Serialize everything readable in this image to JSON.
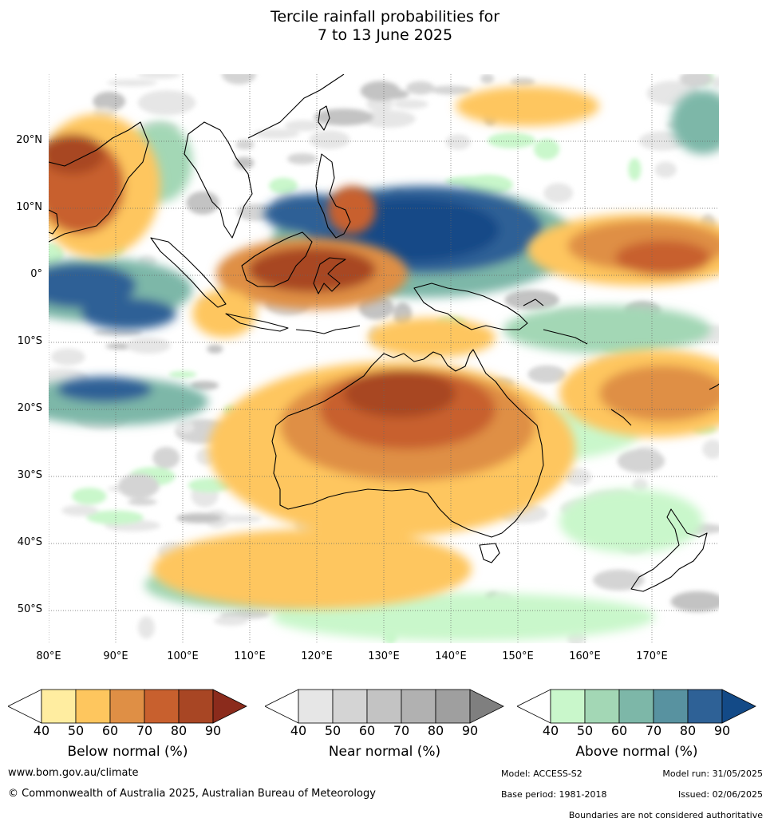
{
  "title": {
    "line1": "Tercile rainfall probabilities for",
    "line2": "7 to 13 June 2025"
  },
  "map": {
    "lat_labels": [
      "20°N",
      "10°N",
      "0°",
      "10°S",
      "20°S",
      "30°S",
      "40°S",
      "50°S"
    ],
    "lon_labels": [
      "80°E",
      "90°E",
      "100°E",
      "110°E",
      "120°E",
      "130°E",
      "140°E",
      "150°E",
      "160°E",
      "170°E"
    ]
  },
  "legends": [
    {
      "title": "Below normal (%)",
      "ticks": [
        "40",
        "50",
        "60",
        "70",
        "80",
        "90"
      ],
      "colors": [
        "#ffeda0",
        "#fec65e",
        "#df8f45",
        "#c8602e",
        "#a84624",
        "#8b2b1c"
      ]
    },
    {
      "title": "Near normal (%)",
      "ticks": [
        "40",
        "50",
        "60",
        "70",
        "80",
        "90"
      ],
      "colors": [
        "#e6e6e6",
        "#d4d4d4",
        "#c3c3c3",
        "#b1b1b1",
        "#9f9f9f",
        "#7f7f7f"
      ]
    },
    {
      "title": "Above normal (%)",
      "ticks": [
        "40",
        "50",
        "60",
        "70",
        "80",
        "90"
      ],
      "colors": [
        "#c9f7cb",
        "#a3d7b5",
        "#7db7a8",
        "#5892a0",
        "#2e6196",
        "#134a87"
      ]
    }
  ],
  "footer": {
    "website": "www.bom.gov.au/climate",
    "copyright": "© Commonwealth of Australia 2025, Australian Bureau of Meteorology",
    "model": "Model: ACCESS-S2",
    "model_run": "Model run: 31/05/2025",
    "base_period": "Base period: 1981-2018",
    "issued": "Issued: 02/06/2025",
    "disclaimer": "Boundaries are not considered authoritative"
  }
}
